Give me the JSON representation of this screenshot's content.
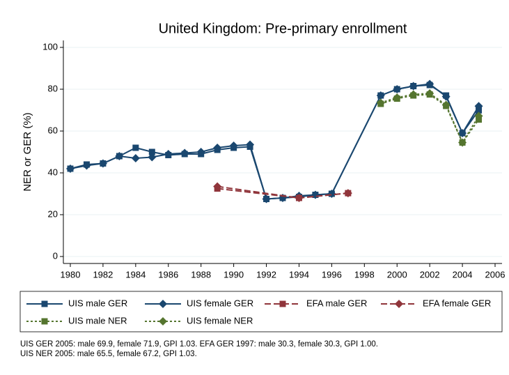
{
  "chart_data": {
    "type": "line",
    "title": "United Kingdom: Pre-primary enrollment",
    "y_label": "NER or GER (%)",
    "xlim": [
      1980,
      2006
    ],
    "xticks": [
      1980,
      1982,
      1984,
      1986,
      1988,
      1990,
      1992,
      1994,
      1996,
      1998,
      2000,
      2002,
      2004,
      2006
    ],
    "ylim": [
      0,
      100
    ],
    "yticks": [
      0,
      20,
      40,
      60,
      80,
      100
    ],
    "grid": true,
    "series": [
      {
        "name": "UIS male GER",
        "color": "#1a476f",
        "marker": "square",
        "line_style": "solid",
        "x": [
          1980,
          1981,
          1982,
          1983,
          1984,
          1985,
          1986,
          1987,
          1988,
          1989,
          1990,
          1991,
          1992,
          1993,
          1994,
          1995,
          1996,
          1999,
          2000,
          2001,
          2002,
          2003,
          2004,
          2005
        ],
        "values": [
          42,
          44,
          44.5,
          48,
          52,
          50,
          48.5,
          49,
          49,
          51,
          52,
          52.5,
          27.5,
          28,
          28.5,
          29.5,
          30,
          77,
          80,
          81.5,
          82,
          77,
          59,
          69.9
        ]
      },
      {
        "name": "UIS female GER",
        "color": "#1a476f",
        "marker": "diamond",
        "line_style": "solid",
        "x": [
          1980,
          1981,
          1982,
          1983,
          1984,
          1985,
          1986,
          1987,
          1988,
          1989,
          1990,
          1991,
          1992,
          1993,
          1994,
          1995,
          1996,
          1999,
          2000,
          2001,
          2002,
          2003,
          2004,
          2005
        ],
        "values": [
          42,
          43.5,
          44.5,
          48,
          47,
          47.5,
          49,
          49.5,
          50,
          52,
          53,
          53.5,
          27.5,
          28,
          29,
          29.5,
          30,
          77,
          80,
          81.5,
          82.5,
          76.5,
          59,
          71.9
        ]
      },
      {
        "name": "EFA male GER",
        "color": "#90353b",
        "marker": "square",
        "line_style": "longdash",
        "x": [
          1989,
          1994,
          1997
        ],
        "values": [
          32.5,
          28,
          30.3
        ]
      },
      {
        "name": "EFA female GER",
        "color": "#90353b",
        "marker": "diamond",
        "line_style": "longdash",
        "x": [
          1989,
          1994,
          1997
        ],
        "values": [
          33.5,
          28,
          30.3
        ]
      },
      {
        "name": "UIS male NER",
        "color": "#55752f",
        "marker": "square",
        "line_style": "dot",
        "x": [
          1999,
          2000,
          2001,
          2002,
          2003,
          2004,
          2005
        ],
        "values": [
          73,
          75.5,
          77,
          77.5,
          72,
          54.5,
          65.5
        ]
      },
      {
        "name": "UIS female NER",
        "color": "#55752f",
        "marker": "diamond",
        "line_style": "dot",
        "x": [
          1999,
          2000,
          2001,
          2002,
          2003,
          2004,
          2005
        ],
        "values": [
          73.5,
          76,
          77.5,
          78,
          72.5,
          54.5,
          67.2
        ]
      }
    ],
    "notes": [
      "UIS GER 2005: male 69.9, female 71.9, GPI 1.03. EFA GER 1997: male 30.3, female 30.3, GPI 1.00.",
      "UIS NER 2005: male 65.5, female 67.2, GPI 1.03."
    ]
  }
}
